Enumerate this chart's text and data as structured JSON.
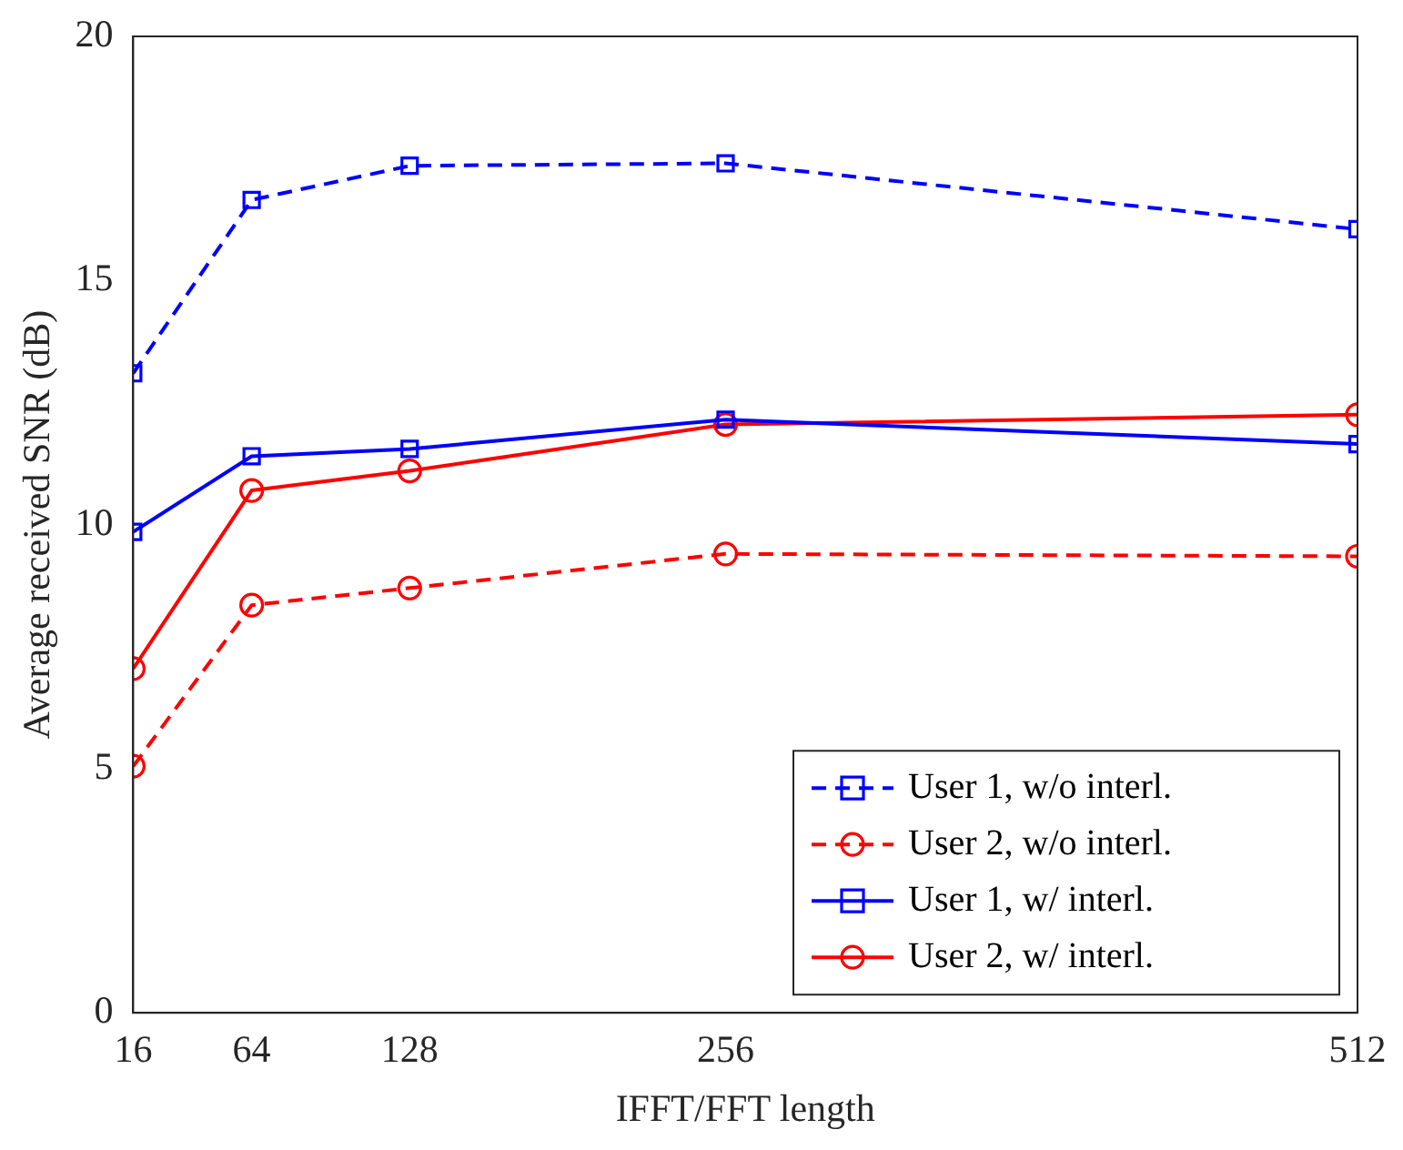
{
  "chart_data": {
    "type": "line",
    "xlabel": "IFFT/FFT length",
    "ylabel": "Average received SNR (dB)",
    "x": [
      16,
      64,
      128,
      256,
      512
    ],
    "xlim": [
      16,
      512
    ],
    "xticks": [
      16,
      64,
      128,
      256,
      512
    ],
    "ylim": [
      0,
      20
    ],
    "yticks": [
      0,
      5,
      10,
      15,
      20
    ],
    "grid": false,
    "legend": "bottom right",
    "series": [
      {
        "name": "User 1, w/o interl.",
        "color": "#0000ff",
        "marker": "square",
        "line_style": "dashed",
        "values": [
          13.1,
          16.65,
          17.35,
          17.4,
          16.05
        ]
      },
      {
        "name": "User 2, w/o interl.",
        "color": "#ff0000",
        "marker": "circle",
        "line_style": "dashed",
        "values": [
          5.05,
          8.35,
          8.7,
          9.4,
          9.35
        ]
      },
      {
        "name": "User 1, w/ interl.",
        "color": "#0000ff",
        "marker": "square",
        "line_style": "solid",
        "values": [
          9.85,
          11.4,
          11.55,
          12.15,
          11.65
        ]
      },
      {
        "name": "User 2, w/ interl.",
        "color": "#ff0000",
        "marker": "circle",
        "line_style": "solid",
        "values": [
          7.05,
          10.7,
          11.1,
          12.05,
          12.25
        ]
      }
    ]
  }
}
